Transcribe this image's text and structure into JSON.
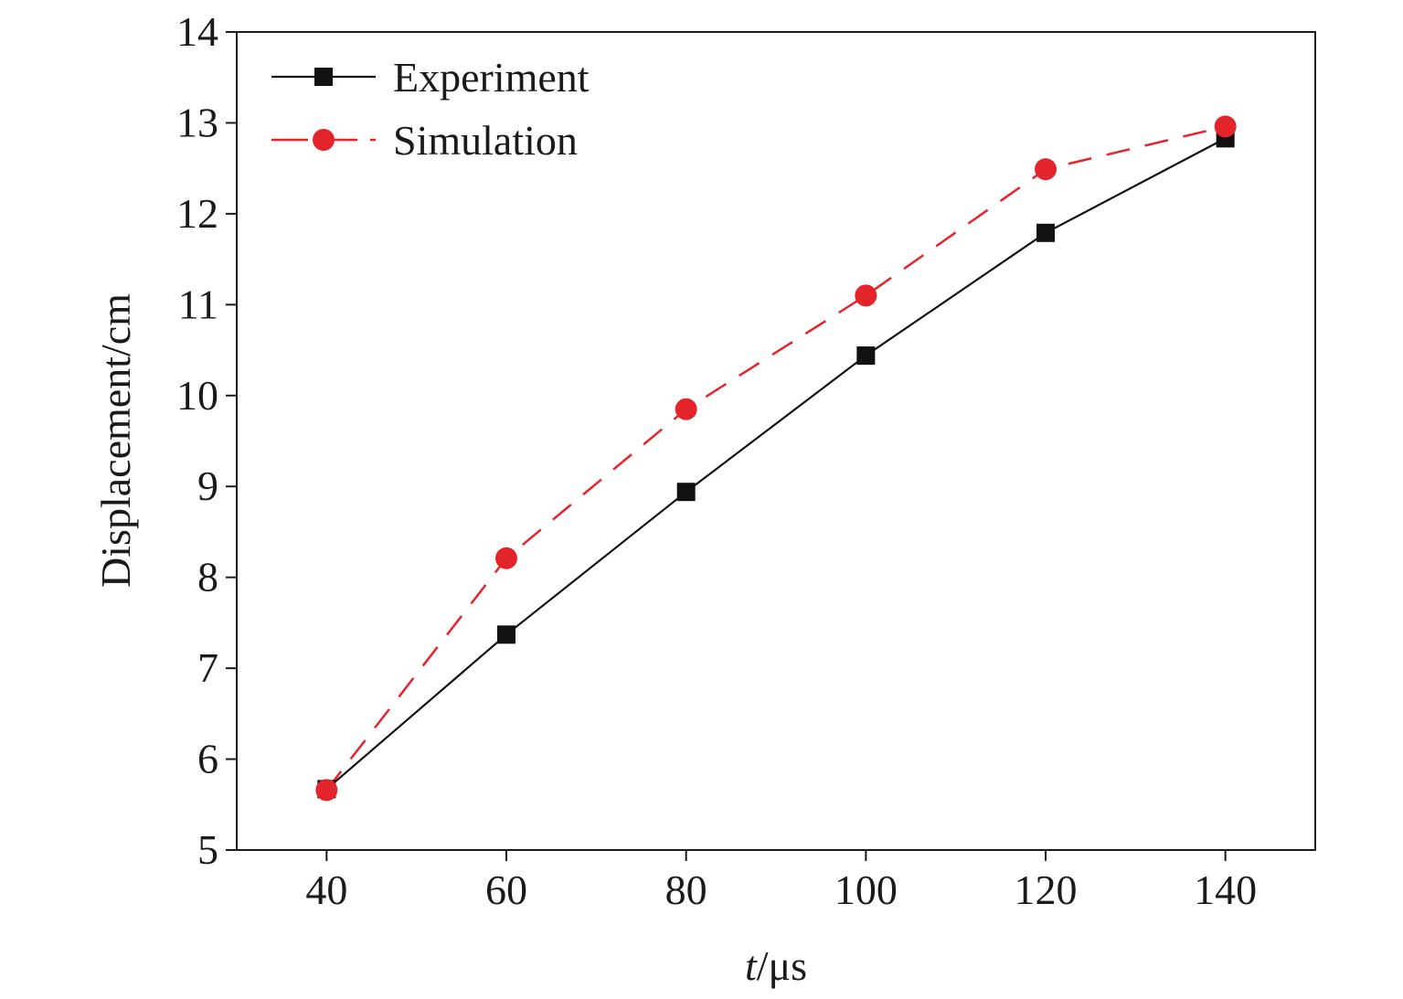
{
  "chart_data": {
    "type": "line",
    "title": "",
    "xlabel_italic": "t",
    "xlabel_rest": "/μs",
    "ylabel": "Displacement/cm",
    "x": [
      40,
      60,
      80,
      100,
      120,
      140
    ],
    "xlim": [
      30,
      150
    ],
    "ylim": [
      5,
      14
    ],
    "xticks": [
      40,
      60,
      80,
      100,
      120,
      140
    ],
    "yticks": [
      5,
      6,
      7,
      8,
      9,
      10,
      11,
      12,
      13,
      14
    ],
    "grid": false,
    "legend_position": "top-left",
    "series": [
      {
        "name": "Experiment",
        "values": [
          5.67,
          7.37,
          8.94,
          10.44,
          11.79,
          12.83
        ],
        "color": "#111111",
        "marker": "square",
        "line_style": "solid"
      },
      {
        "name": "Simulation",
        "values": [
          5.66,
          8.21,
          9.85,
          11.1,
          12.49,
          12.96
        ],
        "color": "#e3242b",
        "marker": "circle",
        "line_style": "dashed"
      }
    ]
  }
}
